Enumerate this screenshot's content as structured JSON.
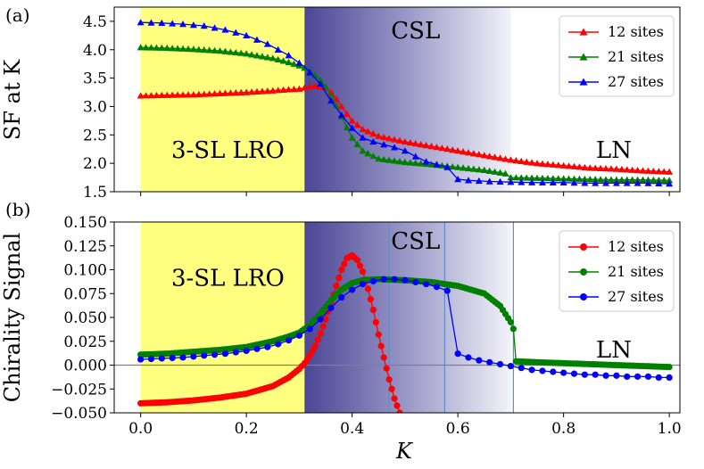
{
  "chart_data": [
    {
      "panel_label": "(a)",
      "type": "line",
      "ylabel": "SF at K",
      "xlabel": "",
      "xlim": [
        -0.05,
        1.02
      ],
      "ylim": [
        1.5,
        4.75
      ],
      "xticks": [
        0.0,
        0.2,
        0.4,
        0.6,
        0.8,
        1.0
      ],
      "xtick_labels": [
        "",
        "",
        "",
        "",
        "",
        ""
      ],
      "yticks": [
        1.5,
        2.0,
        2.5,
        3.0,
        3.5,
        4.0,
        4.5
      ],
      "ytick_labels": [
        "1.5",
        "2.0",
        "2.5",
        "3.0",
        "3.5",
        "4.0",
        "4.5"
      ],
      "regions": [
        {
          "label": "3-SL LRO",
          "x0": 0.0,
          "x1": 0.31,
          "fill": "yellow",
          "color": "#ffff80",
          "label_x": 0.165,
          "label_y": 2.1
        },
        {
          "label": "CSL",
          "x0": 0.31,
          "x1": 0.7,
          "fill": "gradient",
          "color": "#4b4696",
          "label_x": 0.52,
          "label_y": 4.2
        },
        {
          "label": "LN",
          "x0": 0.7,
          "x1": 1.02,
          "fill": "none",
          "color": "#ffffff",
          "label_x": 0.895,
          "label_y": 2.1
        }
      ],
      "vlines": [],
      "hline": null,
      "legend_position": "top-right",
      "marker": "triangle",
      "series": [
        {
          "name": "12 sites",
          "color": "#ff0000",
          "marker_every": 0.01,
          "x": [
            0,
            0.05,
            0.1,
            0.15,
            0.2,
            0.25,
            0.28,
            0.3,
            0.31,
            0.32,
            0.33,
            0.34,
            0.35,
            0.36,
            0.37,
            0.38,
            0.39,
            0.4,
            0.42,
            0.45,
            0.5,
            0.55,
            0.6,
            0.65,
            0.7,
            0.75,
            0.8,
            0.85,
            0.9,
            0.95,
            1.0
          ],
          "y": [
            3.19,
            3.2,
            3.21,
            3.23,
            3.25,
            3.28,
            3.3,
            3.31,
            3.33,
            3.35,
            3.36,
            3.35,
            3.33,
            3.25,
            3.13,
            3.0,
            2.87,
            2.75,
            2.6,
            2.48,
            2.38,
            2.3,
            2.22,
            2.14,
            2.06,
            2.0,
            1.96,
            1.92,
            1.9,
            1.87,
            1.85
          ]
        },
        {
          "name": "21 sites",
          "color": "#008000",
          "marker_every": 0.01,
          "x": [
            0,
            0.05,
            0.1,
            0.15,
            0.2,
            0.25,
            0.28,
            0.3,
            0.31,
            0.32,
            0.33,
            0.34,
            0.35,
            0.36,
            0.37,
            0.38,
            0.39,
            0.4,
            0.42,
            0.45,
            0.5,
            0.55,
            0.6,
            0.65,
            0.69,
            0.7,
            0.75,
            0.8,
            0.85,
            0.9,
            0.95,
            1.0
          ],
          "y": [
            4.04,
            4.03,
            4.01,
            3.98,
            3.93,
            3.85,
            3.78,
            3.72,
            3.68,
            3.62,
            3.55,
            3.46,
            3.35,
            3.2,
            3.02,
            2.82,
            2.63,
            2.45,
            2.22,
            2.08,
            2.02,
            1.98,
            1.93,
            1.88,
            1.82,
            1.75,
            1.74,
            1.73,
            1.72,
            1.71,
            1.71,
            1.7
          ]
        },
        {
          "name": "27 sites",
          "color": "#0000ff",
          "marker_every": 0.02,
          "x": [
            0,
            0.04,
            0.08,
            0.12,
            0.16,
            0.2,
            0.24,
            0.28,
            0.31,
            0.34,
            0.36,
            0.38,
            0.4,
            0.42,
            0.44,
            0.46,
            0.48,
            0.5,
            0.52,
            0.54,
            0.56,
            0.58,
            0.6,
            0.62,
            0.64,
            0.66,
            0.7,
            0.75,
            0.8,
            0.85,
            0.9,
            0.95,
            1.0
          ],
          "y": [
            4.48,
            4.47,
            4.45,
            4.42,
            4.35,
            4.25,
            4.1,
            3.9,
            3.7,
            3.4,
            3.1,
            2.85,
            2.62,
            2.45,
            2.38,
            2.33,
            2.28,
            2.22,
            2.12,
            2.03,
            1.98,
            1.93,
            1.72,
            1.7,
            1.69,
            1.68,
            1.67,
            1.66,
            1.66,
            1.65,
            1.65,
            1.65,
            1.64
          ]
        }
      ]
    },
    {
      "panel_label": "(b)",
      "type": "line",
      "ylabel": "Chirality Signal",
      "xlabel": "K",
      "xlim": [
        -0.05,
        1.02
      ],
      "ylim": [
        -0.05,
        0.15
      ],
      "xticks": [
        0.0,
        0.2,
        0.4,
        0.6,
        0.8,
        1.0
      ],
      "xtick_labels": [
        "0.0",
        "0.2",
        "0.4",
        "0.6",
        "0.8",
        "1.0"
      ],
      "yticks": [
        -0.05,
        -0.025,
        0.0,
        0.025,
        0.05,
        0.075,
        0.1,
        0.125,
        0.15
      ],
      "ytick_labels": [
        "−0.050",
        "−0.025",
        "0.000",
        "0.025",
        "0.050",
        "0.075",
        "0.100",
        "0.125",
        "0.150"
      ],
      "regions": [
        {
          "label": "3-SL LRO",
          "x0": 0.0,
          "x1": 0.31,
          "fill": "yellow",
          "color": "#ffff80",
          "label_x": 0.165,
          "label_y": 0.083
        },
        {
          "label": "CSL",
          "x0": 0.31,
          "x1": 0.7,
          "fill": "gradient",
          "color": "#4b4696",
          "label_x": 0.52,
          "label_y": 0.122
        },
        {
          "label": "LN",
          "x0": 0.7,
          "x1": 1.02,
          "fill": "none",
          "color": "#ffffff",
          "label_x": 0.895,
          "label_y": 0.008
        }
      ],
      "vlines": [
        0.47,
        0.575,
        0.705
      ],
      "hline": 0.0,
      "legend_position": "top-right",
      "marker": "circle",
      "series": [
        {
          "name": "12 sites",
          "color": "#ff0000",
          "marker_every": 0.005,
          "x": [
            0,
            0.05,
            0.1,
            0.15,
            0.2,
            0.25,
            0.28,
            0.3,
            0.31,
            0.32,
            0.33,
            0.34,
            0.35,
            0.36,
            0.37,
            0.38,
            0.39,
            0.4,
            0.41,
            0.42,
            0.43,
            0.44,
            0.45,
            0.46,
            0.47,
            0.48,
            0.49
          ],
          "y": [
            -0.04,
            -0.039,
            -0.037,
            -0.034,
            -0.03,
            -0.022,
            -0.013,
            -0.004,
            0.002,
            0.01,
            0.02,
            0.033,
            0.048,
            0.065,
            0.083,
            0.1,
            0.112,
            0.115,
            0.11,
            0.098,
            0.08,
            0.058,
            0.032,
            0.008,
            -0.015,
            -0.035,
            -0.05
          ]
        },
        {
          "name": "21 sites",
          "color": "#008000",
          "marker_every": 0.005,
          "x": [
            0,
            0.05,
            0.1,
            0.15,
            0.2,
            0.25,
            0.28,
            0.3,
            0.32,
            0.34,
            0.36,
            0.38,
            0.4,
            0.42,
            0.45,
            0.5,
            0.55,
            0.6,
            0.65,
            0.68,
            0.7,
            0.705,
            0.71,
            0.75,
            0.8,
            0.85,
            0.9,
            0.95,
            1.0
          ],
          "y": [
            0.011,
            0.012,
            0.014,
            0.016,
            0.019,
            0.025,
            0.03,
            0.034,
            0.042,
            0.054,
            0.068,
            0.079,
            0.086,
            0.089,
            0.09,
            0.089,
            0.087,
            0.083,
            0.075,
            0.062,
            0.045,
            0.038,
            0.004,
            0.003,
            0.002,
            0.001,
            0.0,
            -0.001,
            -0.002
          ]
        },
        {
          "name": "27 sites",
          "color": "#0000ff",
          "marker_every": 0.02,
          "x": [
            0,
            0.02,
            0.04,
            0.06,
            0.08,
            0.1,
            0.12,
            0.14,
            0.16,
            0.18,
            0.2,
            0.22,
            0.24,
            0.26,
            0.28,
            0.3,
            0.32,
            0.34,
            0.36,
            0.38,
            0.4,
            0.42,
            0.44,
            0.46,
            0.48,
            0.5,
            0.52,
            0.54,
            0.56,
            0.58,
            0.6,
            0.62,
            0.64,
            0.66,
            0.68,
            0.7,
            0.72,
            0.74,
            0.76,
            0.78,
            0.8,
            0.82,
            0.84,
            0.86,
            0.88,
            0.9,
            0.92,
            0.94,
            0.96,
            0.98,
            1.0
          ],
          "y": [
            0.006,
            0.0065,
            0.007,
            0.0075,
            0.008,
            0.009,
            0.01,
            0.011,
            0.012,
            0.0135,
            0.015,
            0.017,
            0.019,
            0.022,
            0.026,
            0.031,
            0.038,
            0.048,
            0.06,
            0.071,
            0.079,
            0.085,
            0.088,
            0.09,
            0.09,
            0.089,
            0.087,
            0.085,
            0.082,
            0.078,
            0.012,
            0.008,
            0.005,
            0.003,
            0.001,
            -0.001,
            -0.003,
            -0.005,
            -0.006,
            -0.007,
            -0.008,
            -0.009,
            -0.01,
            -0.01,
            -0.011,
            -0.011,
            -0.012,
            -0.012,
            -0.012,
            -0.013,
            -0.013
          ]
        }
      ]
    }
  ]
}
